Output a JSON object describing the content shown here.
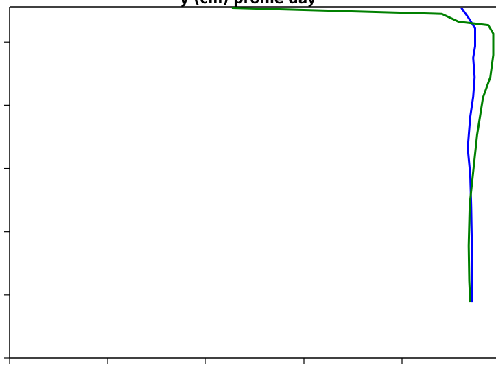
{
  "chart_data": {
    "type": "line",
    "title": "y (cm) profile day",
    "xlabel": "",
    "ylabel": "",
    "xlim": [
      0,
      1
    ],
    "ylim": [
      0,
      1
    ],
    "grid": false,
    "legend": "none",
    "x_ticks": [
      0,
      0.2,
      0.4,
      0.6,
      0.8,
      1.0
    ],
    "y_ticks": [
      0.1,
      0.28,
      0.46,
      0.64,
      0.82,
      1.0
    ],
    "series": [
      {
        "color": "#0000ff",
        "x": [
          0.921,
          0.936,
          0.949,
          0.949,
          0.945,
          0.948,
          0.945,
          0.939,
          0.934,
          0.939,
          0.941,
          0.942,
          0.943,
          0.943
        ],
        "y": [
          0.003,
          0.032,
          0.061,
          0.112,
          0.145,
          0.2,
          0.256,
          0.313,
          0.402,
          0.477,
          0.57,
          0.65,
          0.745,
          0.84
        ]
      },
      {
        "color": "#008000",
        "x": [
          0.453,
          0.881,
          0.915,
          0.976,
          0.986,
          0.986,
          0.98,
          0.965,
          0.953,
          0.946,
          0.938,
          0.936,
          0.937,
          0.939
        ],
        "y": [
          0.003,
          0.02,
          0.042,
          0.052,
          0.076,
          0.137,
          0.2,
          0.258,
          0.365,
          0.457,
          0.562,
          0.68,
          0.78,
          0.84
        ]
      }
    ]
  }
}
